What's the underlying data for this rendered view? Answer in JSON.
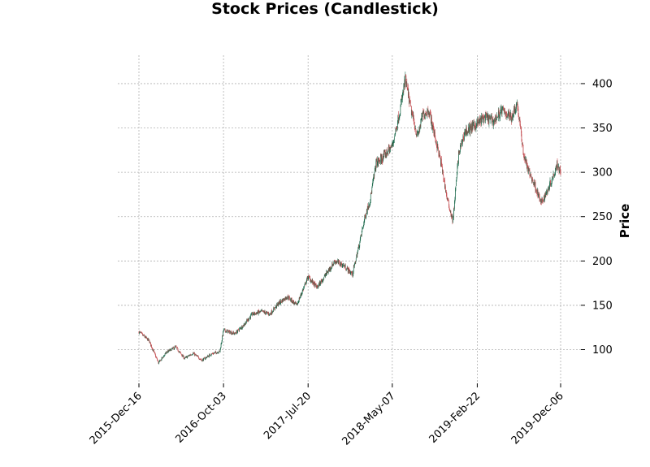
{
  "chart_data": {
    "type": "candlestick",
    "title": "Stock Prices (Candlestick)",
    "xlabel": "",
    "ylabel": "Price",
    "ylim": [
      62,
      432
    ],
    "y_ticks": [
      100,
      150,
      200,
      250,
      300,
      350,
      400
    ],
    "x_tick_labels": [
      "2015-Dec-16",
      "2016-Oct-03",
      "2017-Jul-20",
      "2018-May-07",
      "2019-Feb-22",
      "2019-Dec-06"
    ],
    "grid": true,
    "y_axis_side": "right",
    "colors": {
      "up": "#1f6b4e",
      "down": "#c44e52",
      "grid": "#b0b0b0"
    },
    "price_path": [
      [
        "2015-Dec-16",
        120
      ],
      [
        "2016-Jan-20",
        110
      ],
      [
        "2016-Feb-20",
        85
      ],
      [
        "2016-Mar-20",
        97
      ],
      [
        "2016-Apr-20",
        103
      ],
      [
        "2016-May-20",
        90
      ],
      [
        "2016-Jun-20",
        96
      ],
      [
        "2016-Jul-20",
        88
      ],
      [
        "2016-Aug-20",
        95
      ],
      [
        "2016-Sep-20",
        98
      ],
      [
        "2016-Oct-03",
        122
      ],
      [
        "2016-Nov-10",
        118
      ],
      [
        "2016-Dec-10",
        128
      ],
      [
        "2017-Jan-10",
        140
      ],
      [
        "2017-Feb-10",
        143
      ],
      [
        "2017-Mar-10",
        140
      ],
      [
        "2017-Apr-10",
        152
      ],
      [
        "2017-May-10",
        160
      ],
      [
        "2017-Jun-10",
        150
      ],
      [
        "2017-Jul-20",
        182
      ],
      [
        "2017-Aug-20",
        170
      ],
      [
        "2017-Sep-20",
        185
      ],
      [
        "2017-Oct-20",
        200
      ],
      [
        "2017-Nov-20",
        195
      ],
      [
        "2017-Dec-20",
        185
      ],
      [
        "2018-Jan-10",
        215
      ],
      [
        "2018-Feb-01",
        250
      ],
      [
        "2018-Feb-20",
        270
      ],
      [
        "2018-Mar-10",
        310
      ],
      [
        "2018-Mar-30",
        315
      ],
      [
        "2018-May-07",
        330
      ],
      [
        "2018-Jun-01",
        370
      ],
      [
        "2018-Jun-20",
        405
      ],
      [
        "2018-Jul-10",
        370
      ],
      [
        "2018-Aug-01",
        340
      ],
      [
        "2018-Aug-20",
        365
      ],
      [
        "2018-Sep-10",
        370
      ],
      [
        "2018-Sep-30",
        340
      ],
      [
        "2018-Oct-20",
        310
      ],
      [
        "2018-Nov-10",
        270
      ],
      [
        "2018-Nov-30",
        245
      ],
      [
        "2018-Dec-20",
        320
      ],
      [
        "2019-Jan-10",
        345
      ],
      [
        "2019-Feb-22",
        355
      ],
      [
        "2019-Mar-20",
        362
      ],
      [
        "2019-Apr-20",
        358
      ],
      [
        "2019-May-20",
        370
      ],
      [
        "2019-Jun-20",
        362
      ],
      [
        "2019-Jul-10",
        378
      ],
      [
        "2019-Aug-01",
        320
      ],
      [
        "2019-Aug-20",
        300
      ],
      [
        "2019-Sep-10",
        285
      ],
      [
        "2019-Oct-01",
        265
      ],
      [
        "2019-Oct-20",
        278
      ],
      [
        "2019-Nov-10",
        295
      ],
      [
        "2019-Nov-25",
        310
      ],
      [
        "2019-Dec-06",
        300
      ]
    ]
  }
}
